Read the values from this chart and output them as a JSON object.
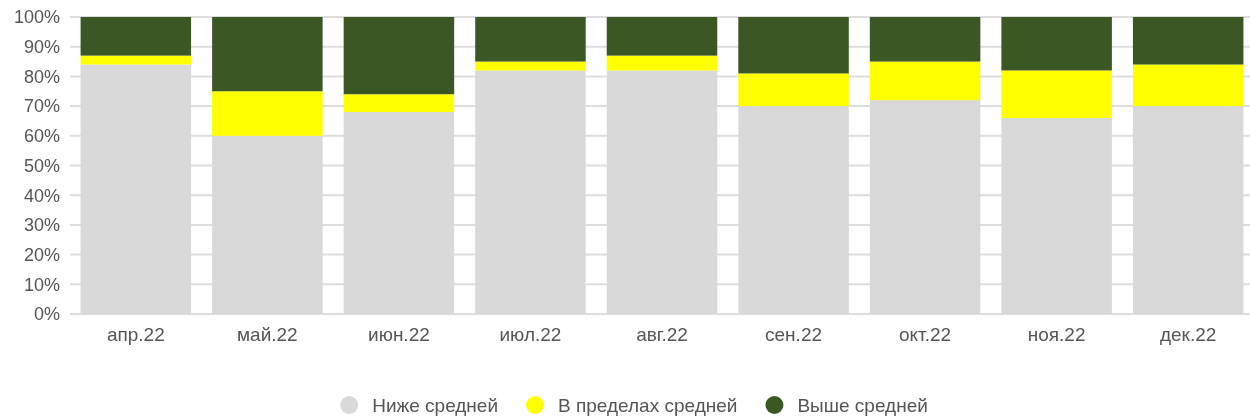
{
  "chart_data": {
    "type": "bar",
    "stacked": true,
    "categories": [
      "апр.22",
      "май.22",
      "июн.22",
      "июл.22",
      "авг.22",
      "сен.22",
      "окт.22",
      "ноя.22",
      "дек.22"
    ],
    "series": [
      {
        "name": "Ниже средней",
        "color": "#d9d9d9",
        "values": [
          84,
          60,
          68,
          82,
          82,
          70,
          72,
          66,
          70
        ]
      },
      {
        "name": "В пределах средней",
        "color": "#ffff00",
        "values": [
          3,
          15,
          6,
          3,
          5,
          11,
          13,
          16,
          14
        ]
      },
      {
        "name": "Выше средней",
        "color": "#3a5724",
        "values": [
          13,
          25,
          26,
          15,
          13,
          19,
          15,
          18,
          16
        ]
      }
    ],
    "ylim": [
      0,
      100
    ],
    "yticks": [
      {
        "value": 0,
        "label": "0%"
      },
      {
        "value": 10,
        "label": "10%"
      },
      {
        "value": 20,
        "label": "20%"
      },
      {
        "value": 30,
        "label": "30%"
      },
      {
        "value": 40,
        "label": "40%"
      },
      {
        "value": 50,
        "label": "50%"
      },
      {
        "value": 60,
        "label": "60%"
      },
      {
        "value": 70,
        "label": "70%"
      },
      {
        "value": 80,
        "label": "80%"
      },
      {
        "value": 90,
        "label": "90%"
      },
      {
        "value": 100,
        "label": "100%"
      }
    ],
    "grid": "y",
    "legend": "bottom"
  }
}
